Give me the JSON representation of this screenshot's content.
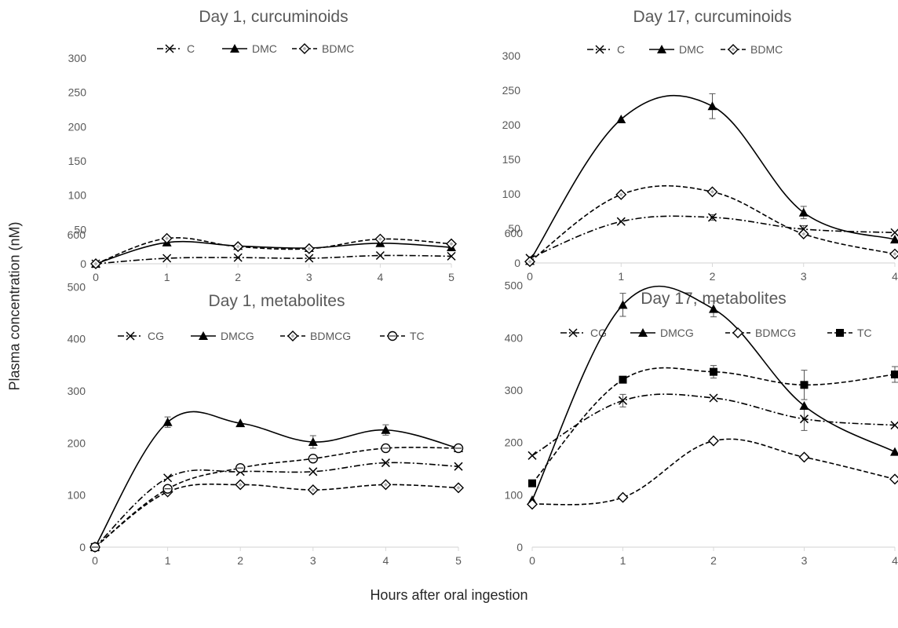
{
  "figure": {
    "ylabel": "Plasma concentration (nM)",
    "xlabel": "Hours after oral ingestion"
  },
  "chart_data": [
    {
      "type": "line",
      "title": "Day 1, curcuminoids",
      "x": [
        0,
        1,
        2,
        3,
        4,
        5
      ],
      "xlim": [
        0,
        5
      ],
      "ylim": [
        0,
        300
      ],
      "yticks": [
        0,
        50,
        100,
        150,
        200,
        250,
        300
      ],
      "legend_position": "top",
      "series": [
        {
          "name": "C",
          "style": "dashdot",
          "marker": "x",
          "values": [
            0,
            8,
            9,
            8,
            12,
            11
          ]
        },
        {
          "name": "DMC",
          "style": "solid",
          "marker": "triangle",
          "values": [
            0,
            31,
            26,
            23,
            30,
            24
          ]
        },
        {
          "name": "BDMC",
          "style": "dashed",
          "marker": "diamond",
          "values": [
            0,
            37,
            25,
            22,
            36,
            29
          ]
        }
      ]
    },
    {
      "type": "line",
      "title": "Day 17, curcuminoids",
      "x": [
        0,
        1,
        2,
        3,
        4
      ],
      "xlim": [
        0,
        4
      ],
      "ylim": [
        0,
        300
      ],
      "yticks": [
        0,
        50,
        100,
        150,
        200,
        250,
        300
      ],
      "legend_position": "top",
      "series": [
        {
          "name": "C",
          "style": "dashdot",
          "marker": "x",
          "values": [
            7,
            60,
            66,
            49,
            44
          ],
          "errors": [
            0,
            0,
            4,
            5,
            0
          ]
        },
        {
          "name": "DMC",
          "style": "solid",
          "marker": "triangle",
          "values": [
            3,
            208,
            227,
            73,
            34
          ],
          "errors": [
            0,
            0,
            18,
            9,
            0
          ]
        },
        {
          "name": "BDMC",
          "style": "dashed",
          "marker": "diamond",
          "values": [
            2,
            99,
            103,
            42,
            13
          ],
          "errors": [
            0,
            0,
            0,
            0,
            0
          ]
        }
      ]
    },
    {
      "type": "line",
      "title": "Day 1, metabolites",
      "x": [
        0,
        1,
        2,
        3,
        4,
        5
      ],
      "xlim": [
        0,
        5
      ],
      "ylim": [
        0,
        600
      ],
      "yticks": [
        0,
        100,
        200,
        300,
        400,
        500,
        600
      ],
      "legend_position": "top",
      "series": [
        {
          "name": "CG",
          "style": "dashdot",
          "marker": "x",
          "values": [
            0,
            133,
            145,
            145,
            162,
            155
          ]
        },
        {
          "name": "DMCG",
          "style": "solid",
          "marker": "triangle",
          "values": [
            0,
            240,
            238,
            202,
            225,
            190
          ],
          "errors": [
            0,
            10,
            0,
            12,
            10,
            0
          ]
        },
        {
          "name": "BDMCG",
          "style": "dashed",
          "marker": "diamond",
          "values": [
            0,
            106,
            120,
            110,
            120,
            114
          ]
        },
        {
          "name": "TC",
          "style": "dashed",
          "marker": "circle",
          "values": [
            0,
            112,
            152,
            170,
            190,
            190
          ]
        }
      ]
    },
    {
      "type": "line",
      "title": "Day 17, metabolites",
      "x": [
        0,
        1,
        2,
        3,
        4
      ],
      "xlim": [
        0,
        4
      ],
      "ylim": [
        0,
        600
      ],
      "yticks": [
        0,
        100,
        200,
        300,
        400,
        500,
        600
      ],
      "legend_position": "top",
      "series": [
        {
          "name": "CG",
          "style": "dashdot",
          "marker": "x",
          "values": [
            175,
            280,
            285,
            245,
            233
          ],
          "errors": [
            0,
            12,
            0,
            22,
            0
          ]
        },
        {
          "name": "DMCG",
          "style": "solid",
          "marker": "triangle",
          "values": [
            90,
            463,
            455,
            270,
            182
          ],
          "errors": [
            0,
            22,
            15,
            0,
            0
          ]
        },
        {
          "name": "BDMCG",
          "style": "dashed",
          "marker": "diamond-open",
          "values": [
            82,
            95,
            203,
            172,
            130
          ]
        },
        {
          "name": "TC",
          "style": "dashed",
          "marker": "square",
          "values": [
            122,
            320,
            335,
            310,
            330
          ],
          "errors": [
            0,
            0,
            12,
            28,
            15
          ]
        }
      ]
    }
  ]
}
